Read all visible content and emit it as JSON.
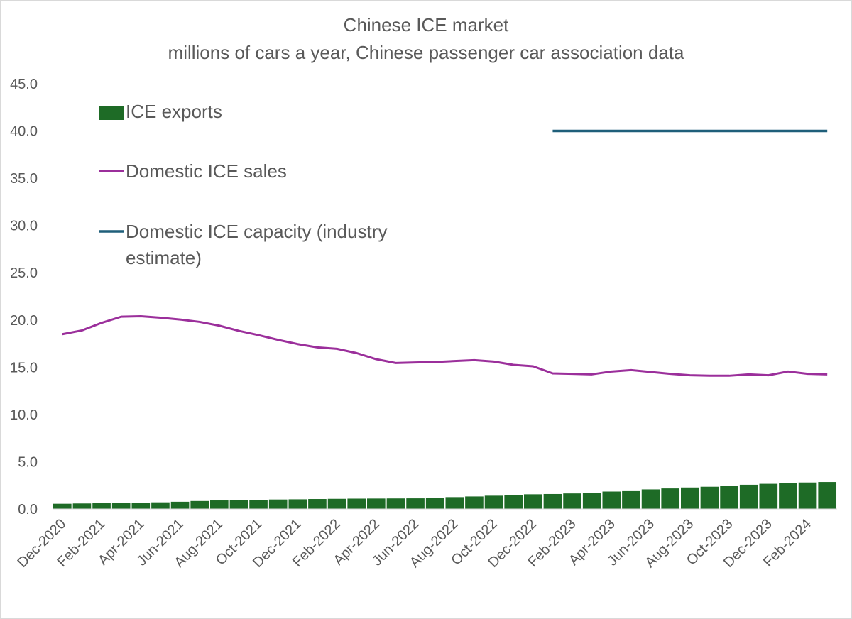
{
  "chart_data": {
    "type": "bar+line",
    "title": "Chinese ICE market",
    "subtitle": "millions of cars a year, Chinese passenger car association data",
    "xlabel": "",
    "ylabel": "",
    "ylim": [
      0,
      45
    ],
    "y_ticks": [
      "0.0",
      "5.0",
      "10.0",
      "15.0",
      "20.0",
      "25.0",
      "30.0",
      "35.0",
      "40.0",
      "45.0"
    ],
    "y_tick_values": [
      0,
      5,
      10,
      15,
      20,
      25,
      30,
      35,
      40,
      45
    ],
    "grid": false,
    "legend_position": "top-left",
    "categories": [
      "Dec-2020",
      "Jan-2021",
      "Feb-2021",
      "Mar-2021",
      "Apr-2021",
      "May-2021",
      "Jun-2021",
      "Jul-2021",
      "Aug-2021",
      "Sep-2021",
      "Oct-2021",
      "Nov-2021",
      "Dec-2021",
      "Jan-2022",
      "Feb-2022",
      "Mar-2022",
      "Apr-2022",
      "May-2022",
      "Jun-2022",
      "Jul-2022",
      "Aug-2022",
      "Sep-2022",
      "Oct-2022",
      "Nov-2022",
      "Dec-2022",
      "Jan-2023",
      "Feb-2023",
      "Mar-2023",
      "Apr-2023",
      "May-2023",
      "Jun-2023",
      "Jul-2023",
      "Aug-2023",
      "Sep-2023",
      "Oct-2023",
      "Nov-2023",
      "Dec-2023",
      "Jan-2024",
      "Feb-2024",
      "Mar-2024"
    ],
    "x_tick_labels": [
      "Dec-2020",
      "Feb-2021",
      "Apr-2021",
      "Jun-2021",
      "Aug-2021",
      "Oct-2021",
      "Dec-2021",
      "Feb-2022",
      "Apr-2022",
      "Jun-2022",
      "Aug-2022",
      "Oct-2022",
      "Dec-2022",
      "Feb-2023",
      "Apr-2023",
      "Jun-2023",
      "Aug-2023",
      "Oct-2023",
      "Dec-2023",
      "Feb-2024"
    ],
    "series": [
      {
        "name": "ICE exports",
        "type": "bar",
        "color": "#1e6b26",
        "values": [
          0.55,
          0.58,
          0.6,
          0.63,
          0.65,
          0.7,
          0.76,
          0.84,
          0.9,
          0.95,
          0.97,
          1.0,
          1.02,
          1.05,
          1.07,
          1.09,
          1.1,
          1.11,
          1.12,
          1.17,
          1.25,
          1.32,
          1.4,
          1.47,
          1.55,
          1.58,
          1.64,
          1.72,
          1.84,
          1.96,
          2.07,
          2.17,
          2.27,
          2.35,
          2.45,
          2.56,
          2.66,
          2.72,
          2.8,
          2.85
        ]
      },
      {
        "name": "Domestic ICE sales",
        "type": "line",
        "color": "#9b2f9b",
        "values": [
          18.5,
          18.9,
          19.7,
          20.35,
          20.4,
          20.25,
          20.05,
          19.8,
          19.4,
          18.85,
          18.4,
          17.9,
          17.45,
          17.1,
          16.95,
          16.5,
          15.85,
          15.45,
          15.5,
          15.55,
          15.65,
          15.75,
          15.6,
          15.25,
          15.1,
          14.35,
          14.3,
          14.25,
          14.55,
          14.7,
          14.5,
          14.3,
          14.15,
          14.1,
          14.1,
          14.25,
          14.15,
          14.55,
          14.3,
          14.25
        ]
      },
      {
        "name": "Domestic ICE capacity (industry estimate)",
        "type": "line",
        "color": "#1f5f7a",
        "start_category": "Jan-2023",
        "end_category": "Mar-2024",
        "value": 40
      }
    ]
  }
}
